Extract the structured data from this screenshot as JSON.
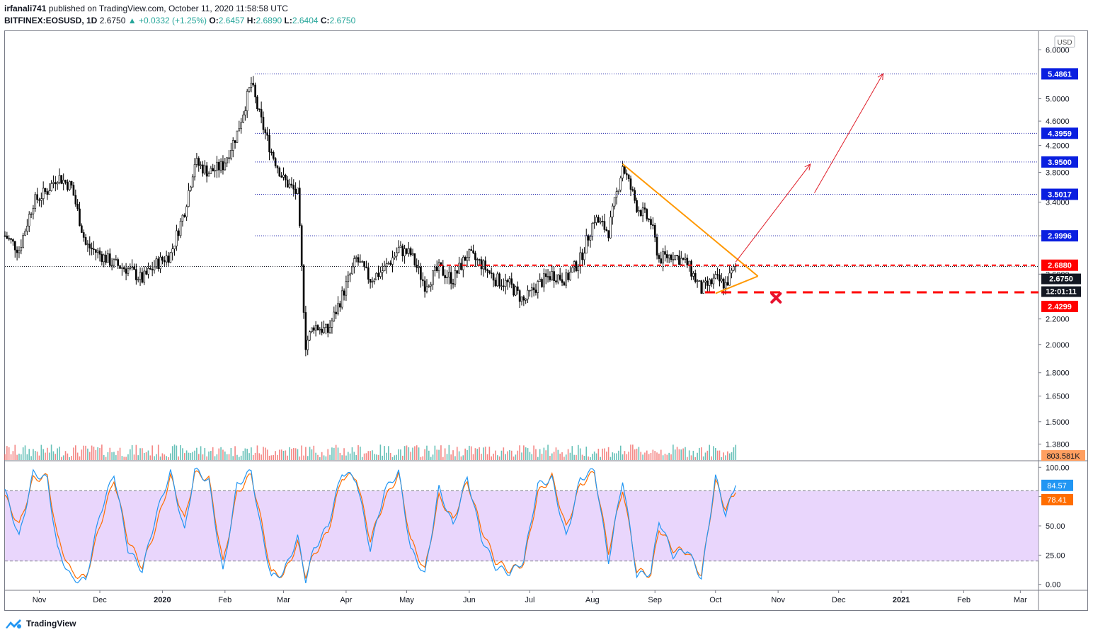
{
  "header": {
    "author": "irfanali741",
    "published_text": "published on TradingView.com, October 11, 2020 11:58:58 UTC",
    "symbol": "BITFINEX:EOSUSD, 1D",
    "last": "2.6750",
    "change": "+0.0332 (+1.25%)",
    "o_label": "O:",
    "o_value": "2.6457",
    "h_label": "H:",
    "h_value": "2.6890",
    "l_label": "L:",
    "l_value": "2.6404",
    "c_label": "C:",
    "c_value": "2.6750"
  },
  "footer": {
    "brand": "TradingView"
  },
  "colors": {
    "candle": "#000000",
    "volume_up": "#26a69a",
    "volume_down": "#ef5350",
    "level_line": "#1e22aa",
    "level_badge": "#0a1fe0",
    "triangle": "#ff9800",
    "red_dash": "#ff0000",
    "arrow": "#e01f2a",
    "stoch_k": "#2196f3",
    "stoch_d": "#ff6d00",
    "stoch_band": "#e1c8fb"
  },
  "chart_data": [
    {
      "type": "candlestick",
      "currency": "USD",
      "scale": "log",
      "ylim": [
        1.3,
        6.2
      ],
      "price_ticks": [
        "6.0000",
        "5.0000",
        "4.6000",
        "4.2000",
        "3.8000",
        "3.4000",
        "3.0000",
        "2.6000",
        "2.2000",
        "2.0000",
        "1.8000",
        "1.6500",
        "1.5000",
        "1.3800"
      ],
      "x_ticks": [
        "Nov",
        "Dec",
        "2020",
        "Feb",
        "Mar",
        "Apr",
        "May",
        "Jun",
        "Jul",
        "Aug",
        "Sep",
        "Oct",
        "Nov",
        "Dec",
        "2021",
        "Feb",
        "Mar"
      ],
      "x_tick_dates": [
        "2019-11-01",
        "2019-12-01",
        "2020-01-01",
        "2020-02-01",
        "2020-03-01",
        "2020-04-01",
        "2020-05-01",
        "2020-06-01",
        "2020-07-01",
        "2020-08-01",
        "2020-09-01",
        "2020-10-01",
        "2020-11-01",
        "2020-12-01",
        "2021-01-01",
        "2021-02-01",
        "2021-03-01"
      ],
      "x_range": [
        "2019-10-15",
        "2021-03-10"
      ],
      "close_path": [
        [
          "2019-10-15",
          3.0
        ],
        [
          "2019-10-22",
          2.85
        ],
        [
          "2019-10-29",
          3.4
        ],
        [
          "2019-11-05",
          3.55
        ],
        [
          "2019-11-10",
          3.75
        ],
        [
          "2019-11-17",
          3.6
        ],
        [
          "2019-11-24",
          2.9
        ],
        [
          "2019-12-01",
          2.8
        ],
        [
          "2019-12-08",
          2.7
        ],
        [
          "2019-12-15",
          2.65
        ],
        [
          "2019-12-22",
          2.55
        ],
        [
          "2019-12-29",
          2.7
        ],
        [
          "2020-01-05",
          2.8
        ],
        [
          "2020-01-12",
          3.3
        ],
        [
          "2020-01-17",
          3.95
        ],
        [
          "2020-01-24",
          3.8
        ],
        [
          "2020-01-31",
          3.9
        ],
        [
          "2020-02-07",
          4.4
        ],
        [
          "2020-02-14",
          5.3
        ],
        [
          "2020-02-18",
          4.7
        ],
        [
          "2020-02-24",
          4.1
        ],
        [
          "2020-03-01",
          3.7
        ],
        [
          "2020-03-08",
          3.5
        ],
        [
          "2020-03-12",
          2.0
        ],
        [
          "2020-03-16",
          2.15
        ],
        [
          "2020-03-23",
          2.1
        ],
        [
          "2020-03-30",
          2.4
        ],
        [
          "2020-04-06",
          2.75
        ],
        [
          "2020-04-13",
          2.55
        ],
        [
          "2020-04-20",
          2.65
        ],
        [
          "2020-04-27",
          2.85
        ],
        [
          "2020-05-03",
          2.8
        ],
        [
          "2020-05-10",
          2.5
        ],
        [
          "2020-05-17",
          2.65
        ],
        [
          "2020-05-24",
          2.55
        ],
        [
          "2020-05-31",
          2.8
        ],
        [
          "2020-06-07",
          2.7
        ],
        [
          "2020-06-14",
          2.55
        ],
        [
          "2020-06-21",
          2.5
        ],
        [
          "2020-06-28",
          2.35
        ],
        [
          "2020-07-05",
          2.5
        ],
        [
          "2020-07-12",
          2.6
        ],
        [
          "2020-07-19",
          2.55
        ],
        [
          "2020-07-26",
          2.75
        ],
        [
          "2020-08-02",
          3.2
        ],
        [
          "2020-08-09",
          3.05
        ],
        [
          "2020-08-16",
          3.9
        ],
        [
          "2020-08-23",
          3.35
        ],
        [
          "2020-08-30",
          3.15
        ],
        [
          "2020-09-03",
          2.75
        ],
        [
          "2020-09-10",
          2.8
        ],
        [
          "2020-09-17",
          2.7
        ],
        [
          "2020-09-24",
          2.45
        ],
        [
          "2020-10-01",
          2.55
        ],
        [
          "2020-10-06",
          2.5
        ],
        [
          "2020-10-11",
          2.675
        ]
      ],
      "levels": [
        {
          "value": 5.4861,
          "label": "5.4861"
        },
        {
          "value": 4.3959,
          "label": "4.3959"
        },
        {
          "value": 3.95,
          "label": "3.9500"
        },
        {
          "value": 3.5017,
          "label": "3.5017"
        },
        {
          "value": 2.9996,
          "label": "2.9996"
        }
      ],
      "resistance": {
        "value": 2.688,
        "label": "2.6880"
      },
      "support": {
        "value": 2.4299,
        "label": "2.4299"
      },
      "last_price": {
        "value": 2.675,
        "label": "2.6750",
        "countdown": "12:01:11"
      },
      "volume_label": "803.581K",
      "annotations": [
        {
          "type": "triangle-upper",
          "from": [
            "2020-08-16",
            3.92
          ],
          "to": [
            "2020-10-22",
            2.58
          ]
        },
        {
          "type": "triangle-lower",
          "from": [
            "2020-10-01",
            2.42
          ],
          "to": [
            "2020-10-22",
            2.58
          ]
        },
        {
          "type": "arrow",
          "from": [
            "2020-10-11",
            2.72
          ],
          "to": [
            "2020-11-17",
            3.92
          ]
        },
        {
          "type": "arrow",
          "from": [
            "2020-11-19",
            3.52
          ],
          "to": [
            "2020-12-23",
            5.49
          ]
        },
        {
          "type": "cross",
          "at": [
            "2020-10-31",
            2.38
          ]
        }
      ]
    },
    {
      "type": "line",
      "name": "stochastic",
      "ylim": [
        -5,
        105
      ],
      "y_ticks": [
        "100.00",
        "75.00",
        "50.00",
        "25.00",
        "0.00"
      ],
      "band": [
        20,
        80
      ],
      "k_label": "84.57",
      "d_label": "78.41",
      "k_path": [
        [
          "2019-10-15",
          80
        ],
        [
          "2019-10-22",
          40
        ],
        [
          "2019-10-29",
          95
        ],
        [
          "2019-11-05",
          90
        ],
        [
          "2019-11-10",
          30
        ],
        [
          "2019-11-17",
          5
        ],
        [
          "2019-11-24",
          3
        ],
        [
          "2019-12-01",
          60
        ],
        [
          "2019-12-08",
          95
        ],
        [
          "2019-12-15",
          30
        ],
        [
          "2019-12-22",
          12
        ],
        [
          "2019-12-29",
          60
        ],
        [
          "2020-01-05",
          96
        ],
        [
          "2020-01-12",
          45
        ],
        [
          "2020-01-17",
          98
        ],
        [
          "2020-01-24",
          88
        ],
        [
          "2020-01-31",
          10
        ],
        [
          "2020-02-07",
          85
        ],
        [
          "2020-02-14",
          97
        ],
        [
          "2020-02-18",
          55
        ],
        [
          "2020-02-24",
          6
        ],
        [
          "2020-03-01",
          10
        ],
        [
          "2020-03-08",
          40
        ],
        [
          "2020-03-12",
          4
        ],
        [
          "2020-03-16",
          30
        ],
        [
          "2020-03-23",
          50
        ],
        [
          "2020-03-30",
          96
        ],
        [
          "2020-04-06",
          90
        ],
        [
          "2020-04-13",
          30
        ],
        [
          "2020-04-20",
          80
        ],
        [
          "2020-04-27",
          96
        ],
        [
          "2020-05-03",
          30
        ],
        [
          "2020-05-10",
          8
        ],
        [
          "2020-05-17",
          82
        ],
        [
          "2020-05-24",
          50
        ],
        [
          "2020-05-31",
          92
        ],
        [
          "2020-06-07",
          40
        ],
        [
          "2020-06-14",
          15
        ],
        [
          "2020-06-21",
          10
        ],
        [
          "2020-06-28",
          20
        ],
        [
          "2020-07-05",
          85
        ],
        [
          "2020-07-12",
          90
        ],
        [
          "2020-07-19",
          40
        ],
        [
          "2020-07-26",
          90
        ],
        [
          "2020-08-02",
          98
        ],
        [
          "2020-08-09",
          20
        ],
        [
          "2020-08-16",
          90
        ],
        [
          "2020-08-23",
          8
        ],
        [
          "2020-08-30",
          10
        ],
        [
          "2020-09-03",
          55
        ],
        [
          "2020-09-10",
          25
        ],
        [
          "2020-09-17",
          30
        ],
        [
          "2020-09-24",
          5
        ],
        [
          "2020-10-01",
          92
        ],
        [
          "2020-10-06",
          60
        ],
        [
          "2020-10-11",
          84.57
        ]
      ],
      "d_path": [
        [
          "2019-10-15",
          75
        ],
        [
          "2019-10-22",
          50
        ],
        [
          "2019-10-29",
          90
        ],
        [
          "2019-11-05",
          92
        ],
        [
          "2019-11-10",
          40
        ],
        [
          "2019-11-17",
          10
        ],
        [
          "2019-11-24",
          5
        ],
        [
          "2019-12-01",
          50
        ],
        [
          "2019-12-08",
          90
        ],
        [
          "2019-12-15",
          38
        ],
        [
          "2019-12-22",
          15
        ],
        [
          "2019-12-29",
          50
        ],
        [
          "2020-01-05",
          92
        ],
        [
          "2020-01-12",
          55
        ],
        [
          "2020-01-17",
          95
        ],
        [
          "2020-01-24",
          90
        ],
        [
          "2020-01-31",
          18
        ],
        [
          "2020-02-07",
          78
        ],
        [
          "2020-02-14",
          94
        ],
        [
          "2020-02-18",
          62
        ],
        [
          "2020-02-24",
          10
        ],
        [
          "2020-03-01",
          8
        ],
        [
          "2020-03-08",
          35
        ],
        [
          "2020-03-12",
          8
        ],
        [
          "2020-03-16",
          25
        ],
        [
          "2020-03-23",
          45
        ],
        [
          "2020-03-30",
          92
        ],
        [
          "2020-04-06",
          92
        ],
        [
          "2020-04-13",
          38
        ],
        [
          "2020-04-20",
          72
        ],
        [
          "2020-04-27",
          94
        ],
        [
          "2020-05-03",
          38
        ],
        [
          "2020-05-10",
          12
        ],
        [
          "2020-05-17",
          75
        ],
        [
          "2020-05-24",
          55
        ],
        [
          "2020-05-31",
          88
        ],
        [
          "2020-06-07",
          48
        ],
        [
          "2020-06-14",
          20
        ],
        [
          "2020-06-21",
          12
        ],
        [
          "2020-06-28",
          18
        ],
        [
          "2020-07-05",
          78
        ],
        [
          "2020-07-12",
          92
        ],
        [
          "2020-07-19",
          48
        ],
        [
          "2020-07-26",
          85
        ],
        [
          "2020-08-02",
          96
        ],
        [
          "2020-08-09",
          28
        ],
        [
          "2020-08-16",
          82
        ],
        [
          "2020-08-23",
          12
        ],
        [
          "2020-08-30",
          8
        ],
        [
          "2020-09-03",
          48
        ],
        [
          "2020-09-10",
          30
        ],
        [
          "2020-09-17",
          28
        ],
        [
          "2020-09-24",
          8
        ],
        [
          "2020-10-01",
          88
        ],
        [
          "2020-10-06",
          65
        ],
        [
          "2020-10-11",
          78.41
        ]
      ]
    }
  ]
}
